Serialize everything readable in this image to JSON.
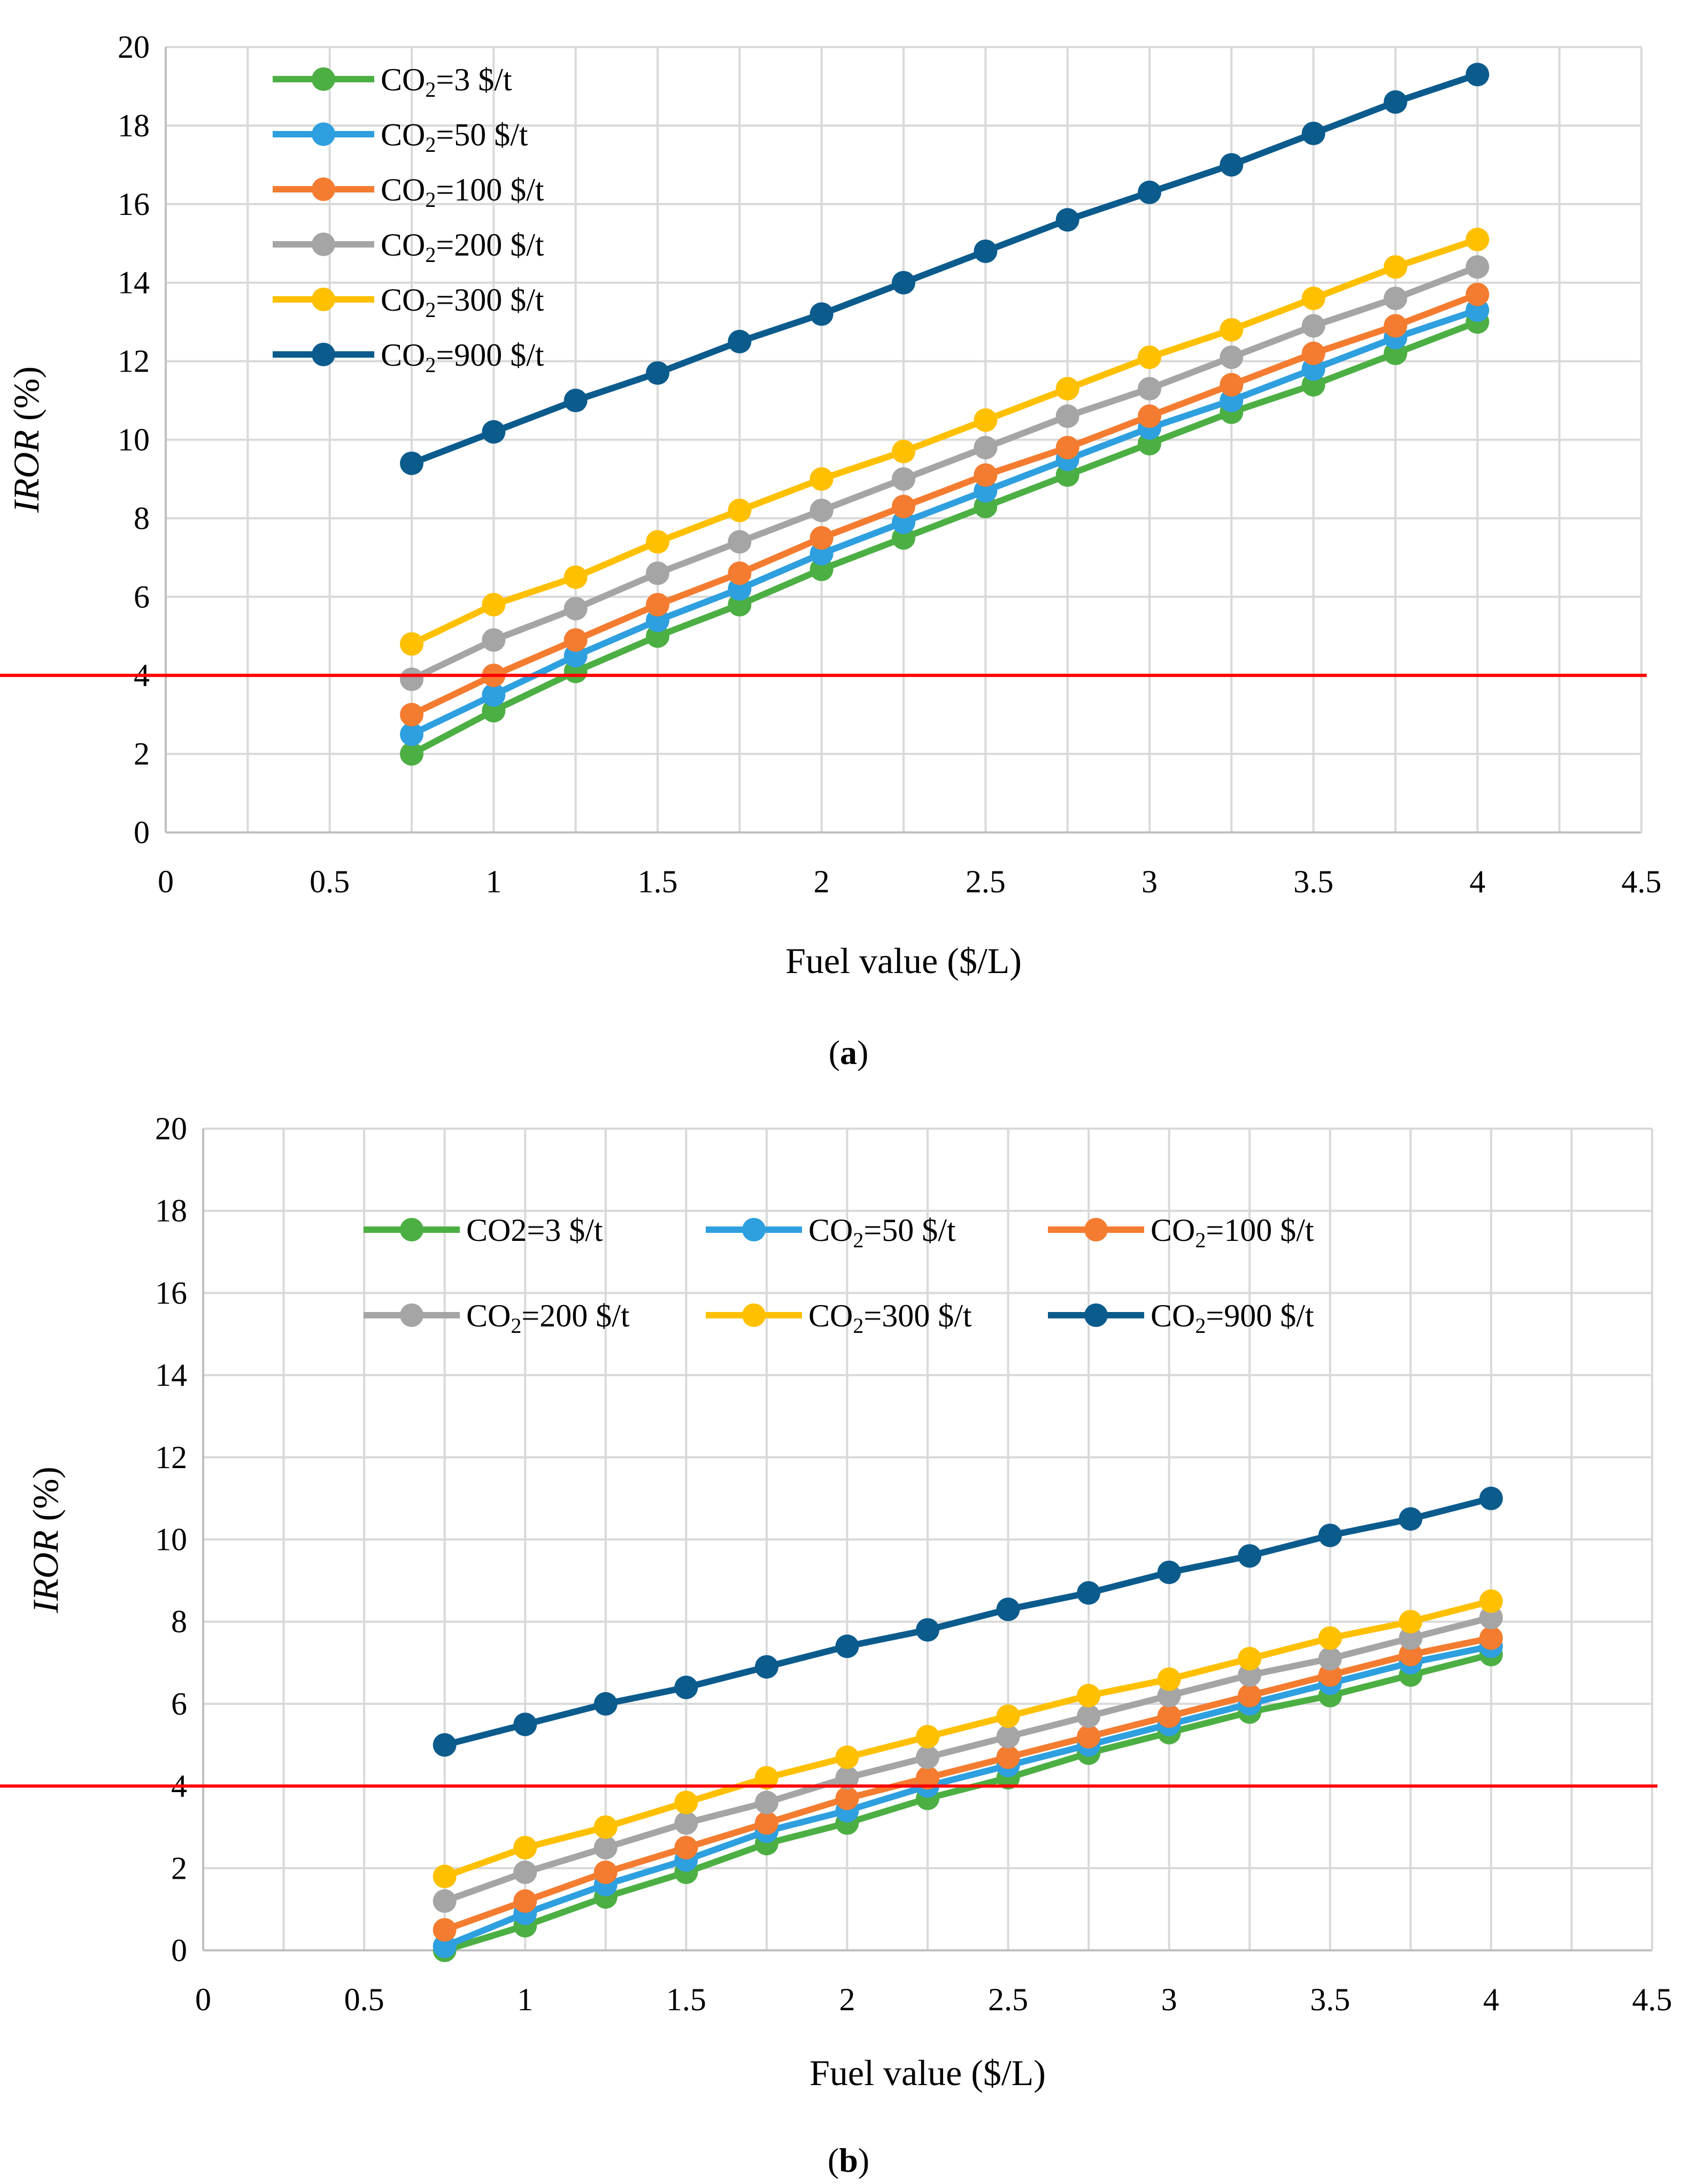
{
  "chart_data": [
    {
      "type": "line",
      "caption": "(a)",
      "caption_paren_open": "(",
      "caption_letter": "a",
      "caption_paren_close": ")",
      "xlabel": "Fuel value ($/L)",
      "ylabel_italic": "IROR",
      "ylabel_rest": " (%)",
      "xlim": [
        0,
        4.5
      ],
      "ylim": [
        0,
        20
      ],
      "xticks": [
        0,
        0.5,
        1,
        1.5,
        2,
        2.5,
        3,
        3.5,
        4,
        4.5
      ],
      "xtick_labels": [
        "0",
        "0.5",
        "1",
        "1.5",
        "2",
        "2.5",
        "3",
        "3.5",
        "4",
        "4.5"
      ],
      "yticks": [
        0,
        2,
        4,
        6,
        8,
        10,
        12,
        14,
        16,
        18,
        20
      ],
      "ytick_labels": [
        "0",
        "2",
        "4",
        "6",
        "8",
        "10",
        "12",
        "14",
        "16",
        "18",
        "20"
      ],
      "grid": true,
      "legend": "top-left, single column",
      "reference_line": {
        "y": 4,
        "color": "#ff0000"
      },
      "x": [
        0.75,
        1,
        1.25,
        1.5,
        1.75,
        2,
        2.25,
        2.5,
        2.75,
        3,
        3.25,
        3.5,
        3.75,
        4
      ],
      "series": [
        {
          "name": "CO₂=3 $/t",
          "label_prefix": "CO",
          "label_sub": "2",
          "label_suffix": "=3 $/t",
          "color": "#4caf43",
          "values": [
            2.0,
            3.1,
            4.1,
            5.0,
            5.8,
            6.7,
            7.5,
            8.3,
            9.1,
            9.9,
            10.7,
            11.4,
            12.2,
            13.0
          ]
        },
        {
          "name": "CO₂=50 $/t",
          "label_prefix": "CO",
          "label_sub": "2",
          "label_suffix": "=50 $/t",
          "color": "#2e9fdf",
          "values": [
            2.5,
            3.5,
            4.5,
            5.4,
            6.2,
            7.1,
            7.9,
            8.7,
            9.5,
            10.3,
            11.0,
            11.8,
            12.6,
            13.3
          ]
        },
        {
          "name": "CO₂=100 $/t",
          "label_prefix": "CO",
          "label_sub": "2",
          "label_suffix": "=100 $/t",
          "color": "#f47c30",
          "values": [
            3.0,
            4.0,
            4.9,
            5.8,
            6.6,
            7.5,
            8.3,
            9.1,
            9.8,
            10.6,
            11.4,
            12.2,
            12.9,
            13.7
          ]
        },
        {
          "name": "CO₂=200 $/t",
          "label_prefix": "CO",
          "label_sub": "2",
          "label_suffix": "=200 $/t",
          "color": "#a5a5a5",
          "values": [
            3.9,
            4.9,
            5.7,
            6.6,
            7.4,
            8.2,
            9.0,
            9.8,
            10.6,
            11.3,
            12.1,
            12.9,
            13.6,
            14.4
          ]
        },
        {
          "name": "CO₂=300 $/t",
          "label_prefix": "CO",
          "label_sub": "2",
          "label_suffix": "=300 $/t",
          "color": "#ffc000",
          "values": [
            4.8,
            5.8,
            6.5,
            7.4,
            8.2,
            9.0,
            9.7,
            10.5,
            11.3,
            12.1,
            12.8,
            13.6,
            14.4,
            15.1
          ]
        },
        {
          "name": "CO₂=900 $/t",
          "label_prefix": "CO",
          "label_sub": "2",
          "label_suffix": "=900 $/t",
          "color": "#0c5b8d",
          "values": [
            9.4,
            10.2,
            11.0,
            11.7,
            12.5,
            13.2,
            14.0,
            14.8,
            15.6,
            16.3,
            17.0,
            17.8,
            18.6,
            19.3
          ]
        }
      ]
    },
    {
      "type": "line",
      "caption": "(b)",
      "caption_paren_open": "(",
      "caption_letter": "b",
      "caption_paren_close": ")",
      "xlabel": "Fuel value ($/L)",
      "ylabel_italic": "IROR",
      "ylabel_rest": " (%)",
      "xlim": [
        0,
        4.5
      ],
      "ylim": [
        0,
        20
      ],
      "xticks": [
        0,
        0.5,
        1,
        1.5,
        2,
        2.5,
        3,
        3.5,
        4,
        4.5
      ],
      "xtick_labels": [
        "0",
        "0.5",
        "1",
        "1.5",
        "2",
        "2.5",
        "3",
        "3.5",
        "4",
        "4.5"
      ],
      "yticks": [
        0,
        2,
        4,
        6,
        8,
        10,
        12,
        14,
        16,
        18,
        20
      ],
      "ytick_labels": [
        "0",
        "2",
        "4",
        "6",
        "8",
        "10",
        "12",
        "14",
        "16",
        "18",
        "20"
      ],
      "grid": true,
      "legend": "top-center, three columns",
      "reference_line": {
        "y": 4,
        "color": "#ff0000"
      },
      "x": [
        0.75,
        1,
        1.25,
        1.5,
        1.75,
        2,
        2.25,
        2.5,
        2.75,
        3,
        3.25,
        3.5,
        3.75,
        4
      ],
      "series": [
        {
          "name": "CO2=3 $/t",
          "label_prefix": "CO2=3 $/t",
          "label_sub": "",
          "label_suffix": "",
          "color": "#4caf43",
          "values": [
            0.0,
            0.6,
            1.3,
            1.9,
            2.6,
            3.1,
            3.7,
            4.2,
            4.8,
            5.3,
            5.8,
            6.2,
            6.7,
            7.2
          ]
        },
        {
          "name": "CO₂=50 $/t",
          "label_prefix": "CO",
          "label_sub": "2",
          "label_suffix": "=50 $/t",
          "color": "#2e9fdf",
          "values": [
            0.1,
            0.9,
            1.6,
            2.2,
            2.9,
            3.4,
            4.0,
            4.5,
            5.0,
            5.5,
            6.0,
            6.5,
            7.0,
            7.4
          ]
        },
        {
          "name": "CO₂=100 $/t",
          "label_prefix": "CO",
          "label_sub": "2",
          "label_suffix": "=100 $/t",
          "color": "#f47c30",
          "values": [
            0.5,
            1.2,
            1.9,
            2.5,
            3.1,
            3.7,
            4.2,
            4.7,
            5.2,
            5.7,
            6.2,
            6.7,
            7.2,
            7.6
          ]
        },
        {
          "name": "CO₂=200 $/t",
          "label_prefix": "CO",
          "label_sub": "2",
          "label_suffix": "=200 $/t",
          "color": "#a5a5a5",
          "values": [
            1.2,
            1.9,
            2.5,
            3.1,
            3.6,
            4.2,
            4.7,
            5.2,
            5.7,
            6.2,
            6.7,
            7.1,
            7.6,
            8.1
          ]
        },
        {
          "name": "CO₂=300 $/t",
          "label_prefix": "CO",
          "label_sub": "2",
          "label_suffix": "=300 $/t",
          "color": "#ffc000",
          "values": [
            1.8,
            2.5,
            3.0,
            3.6,
            4.2,
            4.7,
            5.2,
            5.7,
            6.2,
            6.6,
            7.1,
            7.6,
            8.0,
            8.5
          ]
        },
        {
          "name": "CO₂=900 $/t",
          "label_prefix": "CO",
          "label_sub": "2",
          "label_suffix": "=900 $/t",
          "color": "#0c5b8d",
          "values": [
            5.0,
            5.5,
            6.0,
            6.4,
            6.9,
            7.4,
            7.8,
            8.3,
            8.7,
            9.2,
            9.6,
            10.1,
            10.5,
            11.0
          ]
        }
      ]
    }
  ]
}
